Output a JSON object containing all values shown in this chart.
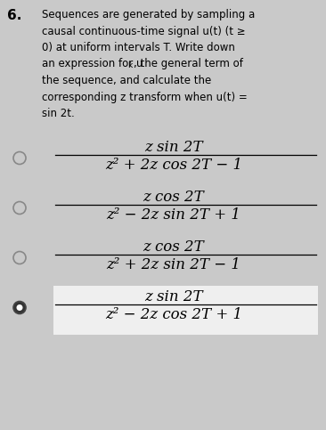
{
  "background_color": "#c9c9c9",
  "selected_bg": "#efefef",
  "question_number": "6.",
  "question_lines": [
    "Sequences are generated by sampling a",
    "causal continuous-time signal u(t) (t ≥",
    "0) at uniform intervals T. Write down",
    "an expression for u_k, the general term of",
    "the sequence, and calculate the",
    "corresponding z transform when u(t) =",
    "sin 2t."
  ],
  "options": [
    {
      "numerator": "z sin 2T",
      "denominator": "z² + 2z cos 2T − 1",
      "selected": false
    },
    {
      "numerator": "z cos 2T",
      "denominator": "z² − 2z sin 2T + 1",
      "selected": false
    },
    {
      "numerator": "z cos 2T",
      "denominator": "z² + 2z sin 2T − 1",
      "selected": false
    },
    {
      "numerator": "z sin 2T",
      "denominator": "z² − 2z cos 2T + 1",
      "selected": true
    }
  ]
}
